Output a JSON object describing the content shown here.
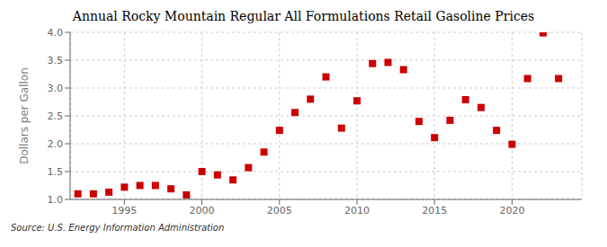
{
  "chart_data": {
    "type": "scatter",
    "title": "Annual Rocky Mountain Regular All Formulations Retail Gasoline Prices",
    "y_label": "Dollars per Gallon",
    "annotations": [
      "Source: U.S. Energy Information Administration"
    ],
    "x": [
      1992,
      1993,
      1994,
      1995,
      1996,
      1997,
      1998,
      1999,
      2000,
      2001,
      2002,
      2003,
      2004,
      2005,
      2006,
      2007,
      2008,
      2009,
      2010,
      2011,
      2012,
      2013,
      2014,
      2015,
      2016,
      2017,
      2018,
      2019,
      2020,
      2021,
      2022,
      2023
    ],
    "values": [
      1.1,
      1.1,
      1.13,
      1.22,
      1.25,
      1.25,
      1.19,
      1.08,
      1.5,
      1.44,
      1.35,
      1.57,
      1.85,
      2.24,
      2.56,
      2.8,
      3.2,
      2.28,
      2.77,
      3.44,
      3.46,
      3.33,
      2.4,
      2.11,
      2.42,
      2.79,
      2.65,
      2.24,
      1.99,
      3.17,
      3.99,
      3.17
    ],
    "color": "#cc0000",
    "marker": "square",
    "xlim": [
      1991.5,
      2024.5
    ],
    "xticks": [
      1995,
      2000,
      2005,
      2010,
      2015,
      2020
    ],
    "ylim": [
      1.0,
      4.0
    ],
    "yticks": [
      {
        "value": 1.0,
        "label": "1.0"
      },
      1.5,
      {
        "value": 2.0,
        "label": "2.0"
      },
      2.5,
      {
        "value": 3.0,
        "label": "3.0"
      },
      3.5,
      {
        "value": 4.0,
        "label": "4.0"
      }
    ],
    "grid": true
  }
}
